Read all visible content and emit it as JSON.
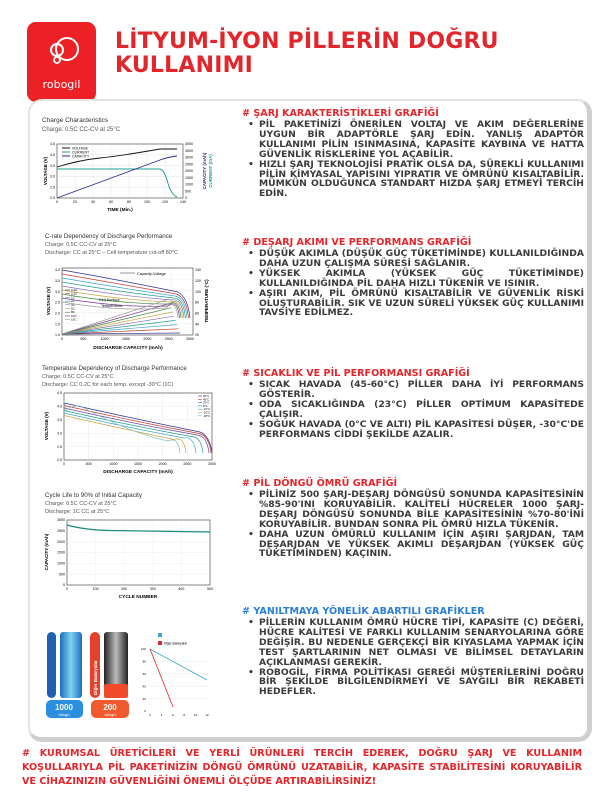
{
  "brand": {
    "name": "robogil",
    "color": "#ec2125"
  },
  "header": {
    "title_line1": "LİTYUM-İYON PİLLERİN DOĞRU",
    "title_line2": "KULLANIMI"
  },
  "sections": [
    {
      "title": "# ŞARJ KARAKTERİSTİKLERİ GRAFİĞİ",
      "bullets": [
        "PİL PAKETİNİZİ ÖNERİLEN VOLTAJ VE AKIM DEĞERLERİNE UYGUN BİR ADAPTÖRLE ŞARJ EDİN. YANLIŞ ADAPTÖR KULLANIMI PİLİN ISINMASINA, KAPASİTE KAYBINA VE HATTA GÜVENLİK RİSKLERİNE YOL AÇABİLİR.",
        "HIZLI ŞARJ TEKNOLOJİSİ PRATİK OLSA DA, SÜREKLİ KULLANIMI PİLİN KİMYASAL YAPISINI YIPRATIR VE ÖMRÜNÜ KISALTABİLİR. MÜMKÜN OLDUĞUNCA STANDART HIZDA ŞARJ ETMEYİ TERCİH EDİN."
      ]
    },
    {
      "title": "# DEŞARJ AKIMI VE PERFORMANS GRAFİĞİ",
      "bullets": [
        "DÜŞÜK AKIMLA (DÜŞÜK GÜÇ TÜKETİMİNDE) KULLANILDIĞINDA DAHA UZUN ÇALIŞMA SÜRESİ SAĞLANIR.",
        "YÜKSEK AKIMLA (YÜKSEK GÜÇ TÜKETİMİNDE) KULLANILDIĞINDA PİL DAHA HIZLI TÜKENİR VE ISINIR.",
        "AŞIRI AKIM, PİL ÖMRÜNÜ KISALTABİLİR VE GÜVENLİK RİSKİ OLUŞTURABİLİR. SIK VE UZUN SÜRELİ YÜKSEK GÜÇ KULLANIMI TAVSİYE EDİLMEZ."
      ]
    },
    {
      "title": "# SICAKLIK VE PİL PERFORMANSI GRAFİĞİ",
      "bullets": [
        "SICAK HAVADA (45-60°C) PİLLER DAHA İYİ PERFORMANS GÖSTERİR.",
        "ODA SICAKLIĞINDA (23°C) PİLLER OPTİMUM KAPASİTEDE ÇALIŞIR.",
        "SOĞUK HAVADA (0°C VE ALTI) PİL KAPASİTESİ DÜŞER, -30°C'DE PERFORMANS CİDDİ ŞEKİLDE AZALIR."
      ]
    },
    {
      "title": "# PİL DÖNGÜ ÖMRÜ GRAFİĞİ",
      "bullets": [
        "PİLİNİZ 500 ŞARJ-DEŞARJ DÖNGÜSÜ SONUNDA KAPASİTESİNİN %85-90'INI KORUYABİLİR. KALİTELİ HÜCRELER 1000 ŞARJ-DEŞARJ DÖNGÜSÜ SONUNDA BİLE KAPASİTESİNİN %70-80'İNİ KORUYABİLİR. BUNDAN SONRA PİL ÖMRÜ HIZLA TÜKENİR.",
        "DAHA UZUN ÖMÜRLÜ KULLANIM İÇİN AŞIRI ŞARJDAN, TAM DEŞARJDAN VE YÜKSEK AKIMLI DEŞARJDAN (YÜKSEK GÜÇ TÜKETİMİNDEN) KAÇININ."
      ]
    },
    {
      "title": "# YANILTMAYA YÖNELİK ABARTILI GRAFİKLER",
      "bullets": [
        "PİLLERİN KULLANIM ÖMRÜ HÜCRE TİPİ, KAPASİTE (C) DEĞERİ, HÜCRE KALİTESİ VE FARKLI KULLANIM SENARYOLARINA GÖRE DEĞİŞİR. BU NEDENLE GERÇEKÇİ BİR KIYASLAMA YAPMAK İÇİN TEST ŞARTLARININ NET OLMASI VE BİLİMSEL DETAYLARIN AÇIKLANMASI GEREKİR.",
        "ROBOGİL, FİRMA POLİTİKASI GEREĞİ MÜŞTERİLERİNİ DOĞRU BİR ŞEKİLDE BİLGİLENDİRMEYİ VE SAYGILI BİR REKABETİ HEDEFLER."
      ]
    }
  ],
  "footer": "# KURUMSAL ÜRETİCİLERİ VE YERLİ ÜRÜNLERİ TERCİH EDEREK, DOĞRU ŞARJ VE KULLANIM KOŞULLARIYLA PİL PAKETİNİZİN DÖNGÜ ÖMRÜNÜ UZATABİLİR, KAPASİTE STABİLİTESİNİ KORUYABİLİR VE CİHAZINIZIN GÜVENLİĞİNİ ÖNEMLİ ÖLÇÜDE ARTIRABİLİRSİNİZ!",
  "charts": {
    "charge": {
      "title": "Charge Characteristics",
      "sub1": "Charge: 0.5C CC-CV at 25°C",
      "ylabel": "VOLTAGE (V)",
      "xlabel": "TIME (Min.)",
      "y2label": "CAPACITY (mAh)",
      "y3label": "CURRENT (mA)",
      "legend": [
        "VOLTAGE",
        "CURRENT",
        "CAPACITY"
      ],
      "yticks": [
        "4.5",
        "4.0",
        "3.5",
        "3.0",
        "2.5",
        "2.0"
      ],
      "y2ticks": [
        "4000",
        "3500",
        "3000",
        "2500",
        "2000",
        "1500",
        "1000",
        "500",
        "0"
      ],
      "xticks": [
        "0",
        "20",
        "40",
        "60",
        "80",
        "100",
        "120",
        "140"
      ]
    },
    "crate": {
      "title": "C-rate Dependency of Discharge Performance",
      "sub1": "Charge: 0.5C CC-CV at 25°C",
      "sub2": "Discharge: CC at 25°C – Cell temperature cut-off 80°C",
      "ylabel": "VOLTAGE (V)",
      "y2label": "TEMPERATURE (°C)",
      "xlabel": "DISCHARGE CAPACITY (mAh)",
      "ann1": "Capacity-Voltage",
      "ann2a": "Cell Surface",
      "ann2b": "Temperature",
      "legend": [
        "0.2C",
        "0.5C",
        "1C",
        "2C",
        "3C",
        "5C",
        "8C",
        "10C",
        "15C"
      ],
      "yticks": [
        "4.0",
        "3.5",
        "3.0",
        "2.5",
        "2.0",
        "1.5",
        "1.0"
      ],
      "y2ticks": [
        "140",
        "120",
        "100",
        "80",
        "60",
        "40",
        "20"
      ],
      "xticks": [
        "0",
        "500",
        "1000",
        "1500",
        "2000",
        "2500",
        "3000"
      ]
    },
    "temp": {
      "title": "Temperature Dependency of Discharge Performance",
      "sub1": "Charge: 0.5C CC-CV at 25°C",
      "sub2": "Discharge: CC 0.2C for each temp. except -30°C (1C)",
      "ylabel": "VOLTAGE (V)",
      "xlabel": "DISCHARGE CAPACITY (mAh)",
      "legend": [
        "60°C",
        "45°C",
        "23°C",
        "0°C",
        "-10°C",
        "-20°C",
        "-30°C"
      ],
      "yticks": [
        "4.5",
        "4.0",
        "3.5",
        "3.0",
        "2.5",
        "2.0"
      ],
      "xticks": [
        "0",
        "500",
        "1000",
        "1500",
        "2000",
        "2500",
        "3000"
      ]
    },
    "cycle": {
      "title": "Cycle Life to 90% of Initial Capacity",
      "sub1": "Charge: 0.5C CC-CV at 25°C",
      "sub2": "Discharge: 1C CC at 25°C",
      "ylabel": "CAPACITY (mAh)",
      "xlabel": "CYCLE NUMBER",
      "yticks": [
        "3000",
        "2500",
        "2000",
        "1500",
        "1000",
        "500",
        "0"
      ],
      "xticks": [
        "0",
        "100",
        "200",
        "300",
        "400",
        "500"
      ]
    },
    "compare": {
      "badge1_num": "1000",
      "badge1_unit": "döngü",
      "badge2_num": "200",
      "badge2_unit": "döngü",
      "side_label": "Diğer Bataryalar",
      "legend_other": "Diğer Bataryalar",
      "yticks": [
        "100",
        "80",
        "60",
        "40",
        "20",
        "0"
      ],
      "xticks": [
        "2",
        "4",
        "6",
        "8",
        "10",
        "12"
      ],
      "colors": {
        "ours": "#3aa7cf",
        "other": "#e3262b"
      }
    }
  }
}
